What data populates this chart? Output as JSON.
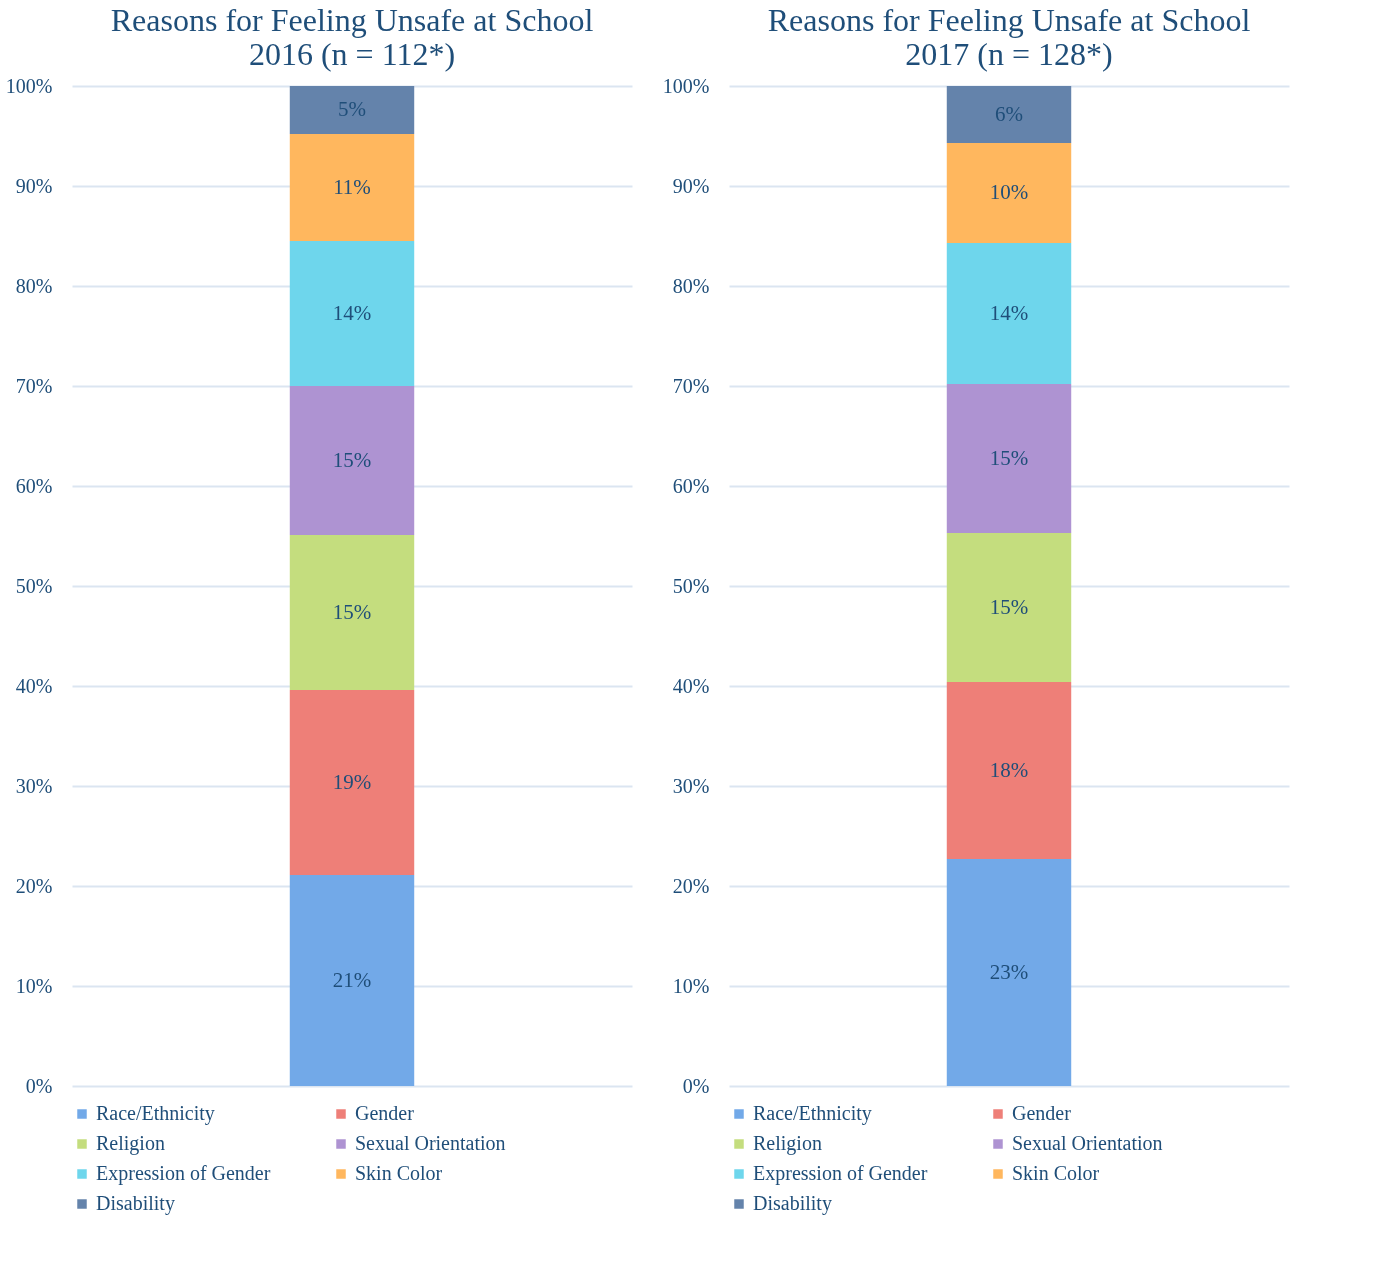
{
  "chart_data": [
    {
      "type": "bar",
      "title": [
        "Reasons for Feeling Unsafe at School",
        "2016 (n = 112*)"
      ],
      "categories": [
        null
      ],
      "stacked": true,
      "ylim": [
        0,
        100
      ],
      "yticks": [
        {
          "value": 0,
          "label": "0%"
        },
        {
          "value": 10,
          "label": "10%"
        },
        {
          "value": 20,
          "label": "20%"
        },
        {
          "value": 30,
          "label": "30%"
        },
        {
          "value": 40,
          "label": "40%"
        },
        {
          "value": 50,
          "label": "50%"
        },
        {
          "value": 60,
          "label": "60%"
        },
        {
          "value": 70,
          "label": "70%"
        },
        {
          "value": 80,
          "label": "80%"
        },
        {
          "value": 90,
          "label": "90%"
        },
        {
          "value": 100,
          "label": "100%"
        }
      ],
      "grid": "y",
      "legend": "bottom",
      "tick_labels": "y",
      "series": [
        {
          "name": "Race/Ethnicity",
          "color": "#72a9e8",
          "values": [
            21.1
          ],
          "value_labels": [
            "21%"
          ]
        },
        {
          "name": "Gender",
          "color": "#ee7f78",
          "values": [
            18.5
          ],
          "value_labels": [
            "19%"
          ]
        },
        {
          "name": "Religion",
          "color": "#c4dd7e",
          "values": [
            15.5
          ],
          "value_labels": [
            "15%"
          ]
        },
        {
          "name": "Sexual Orientation",
          "color": "#ae93d2",
          "values": [
            14.9
          ],
          "value_labels": [
            "15%"
          ]
        },
        {
          "name": "Expression of Gender",
          "color": "#6ed6ec",
          "values": [
            14.5
          ],
          "value_labels": [
            "14%"
          ]
        },
        {
          "name": "Skin Color",
          "color": "#ffb75e",
          "values": [
            10.7
          ],
          "value_labels": [
            "11%"
          ]
        },
        {
          "name": "Disability",
          "color": "#6483ab",
          "values": [
            4.8
          ],
          "value_labels": [
            "5%"
          ]
        }
      ]
    },
    {
      "type": "bar",
      "title": [
        "Reasons for Feeling Unsafe at School",
        "2017 (n = 128*)"
      ],
      "categories": [
        null
      ],
      "stacked": true,
      "ylim": [
        0,
        100
      ],
      "yticks": [
        {
          "value": 0,
          "label": "0%"
        },
        {
          "value": 10,
          "label": "10%"
        },
        {
          "value": 20,
          "label": "20%"
        },
        {
          "value": 30,
          "label": "30%"
        },
        {
          "value": 40,
          "label": "40%"
        },
        {
          "value": 50,
          "label": "50%"
        },
        {
          "value": 60,
          "label": "60%"
        },
        {
          "value": 70,
          "label": "70%"
        },
        {
          "value": 80,
          "label": "80%"
        },
        {
          "value": 90,
          "label": "90%"
        },
        {
          "value": 100,
          "label": "100%"
        }
      ],
      "grid": "y",
      "legend": "bottom",
      "tick_labels": "y",
      "series": [
        {
          "name": "Race/Ethnicity",
          "color": "#72a9e8",
          "values": [
            22.7
          ],
          "value_labels": [
            "23%"
          ]
        },
        {
          "name": "Gender",
          "color": "#ee7f78",
          "values": [
            17.7
          ],
          "value_labels": [
            "18%"
          ]
        },
        {
          "name": "Religion",
          "color": "#c4dd7e",
          "values": [
            14.9
          ],
          "value_labels": [
            "15%"
          ]
        },
        {
          "name": "Sexual Orientation",
          "color": "#ae93d2",
          "values": [
            14.9
          ],
          "value_labels": [
            "15%"
          ]
        },
        {
          "name": "Expression of Gender",
          "color": "#6ed6ec",
          "values": [
            14.1
          ],
          "value_labels": [
            "14%"
          ]
        },
        {
          "name": "Skin Color",
          "color": "#ffb75e",
          "values": [
            10.0
          ],
          "value_labels": [
            "10%"
          ]
        },
        {
          "name": "Disability",
          "color": "#6483ab",
          "values": [
            5.7
          ],
          "value_labels": [
            "6%"
          ]
        }
      ]
    }
  ]
}
